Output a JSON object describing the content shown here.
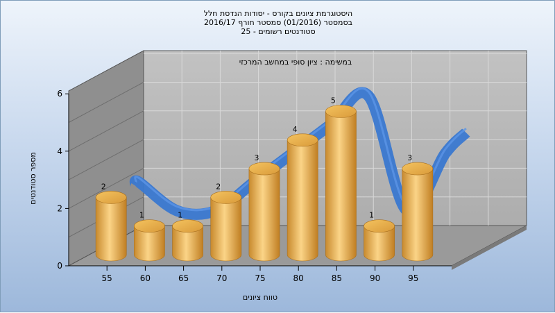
{
  "titles": {
    "line1": "היסטוגרמת ציונים בקורס - יסודות הנדסת חלל",
    "line2": "בסמסטר  (01/2016)  סמסטר חורף  2016/17",
    "line3": "סטודנטים רשומים - 25"
  },
  "chart_data": {
    "type": "bar",
    "subtitle": "במשימה : ציון סופי במחשב המרכזי",
    "xlabel": "טווח ציונים",
    "ylabel": "מספר סטודנטים",
    "x_ticks": [
      "55",
      "60",
      "65",
      "70",
      "75",
      "80",
      "85",
      "90",
      "95"
    ],
    "y_ticks": [
      "0",
      "2",
      "4",
      "6"
    ],
    "ylim": [
      0,
      6
    ],
    "categories": [
      "55",
      "60",
      "65",
      "70",
      "75",
      "80",
      "85",
      "90",
      "95"
    ],
    "values": [
      2,
      1,
      1,
      2,
      3,
      4,
      5,
      1,
      3
    ],
    "trend_curve": true,
    "colors": {
      "bar_light": "#f7cf7a",
      "bar_dark": "#c88a2e",
      "curve": "#3a78d0",
      "back_wall": "#b8b8b8",
      "side_wall": "#8f8f8f",
      "floor": "#9a9a9a"
    },
    "grid": true
  }
}
